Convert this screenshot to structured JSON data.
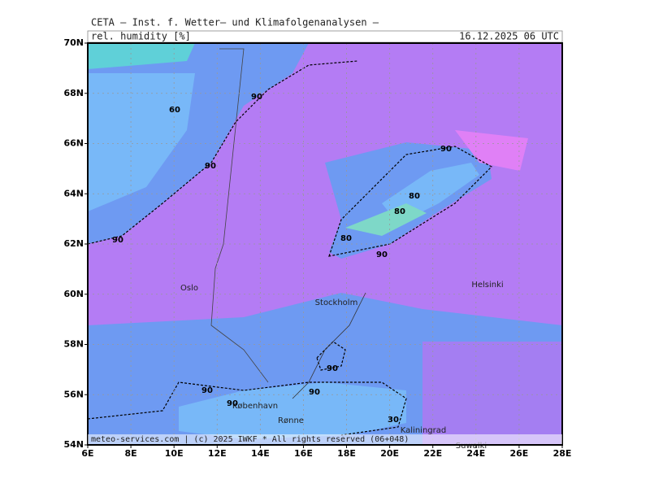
{
  "header": {
    "source": "CETA — Inst. f. Wetter— und Klimafolgenanalysen —",
    "parameter": "rel. humidity [%]",
    "datetime": "16.12.2025 06 UTC"
  },
  "map": {
    "lat_ticks": [
      {
        "value": 54,
        "label": "54N"
      },
      {
        "value": 56,
        "label": "56N"
      },
      {
        "value": 58,
        "label": "58N"
      },
      {
        "value": 60,
        "label": "60N"
      },
      {
        "value": 62,
        "label": "62N"
      },
      {
        "value": 64,
        "label": "64N"
      },
      {
        "value": 66,
        "label": "66N"
      },
      {
        "value": 68,
        "label": "68N"
      },
      {
        "value": 70,
        "label": "70N"
      }
    ],
    "lon_ticks": [
      {
        "value": 6,
        "label": "6E"
      },
      {
        "value": 8,
        "label": "8E"
      },
      {
        "value": 10,
        "label": "10E"
      },
      {
        "value": 12,
        "label": "12E"
      },
      {
        "value": 14,
        "label": "14E"
      },
      {
        "value": 16,
        "label": "16E"
      },
      {
        "value": 18,
        "label": "18E"
      },
      {
        "value": 20,
        "label": "20E"
      },
      {
        "value": 22,
        "label": "22E"
      },
      {
        "value": 24,
        "label": "24E"
      },
      {
        "value": 26,
        "label": "26E"
      },
      {
        "value": 28,
        "label": "28E"
      }
    ],
    "places": [
      "Oslo",
      "Stockholm",
      "Helsinki",
      "København",
      "Rønne",
      "Kaliningrad",
      "Suwałki"
    ],
    "contour_labels": [
      "60",
      "90",
      "90",
      "90",
      "90",
      "80",
      "80",
      "80",
      "90",
      "90",
      "90",
      "90",
      "90",
      "30"
    ]
  },
  "footer": "meteo-services.com | (c) 2025 IWKF * All rights reserved (06+048)"
}
